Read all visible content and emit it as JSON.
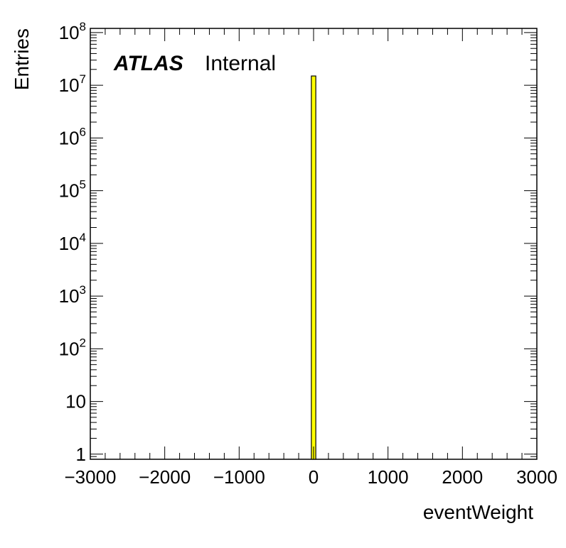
{
  "chart_data": {
    "type": "bar",
    "xlabel": "eventWeight",
    "ylabel": "Entries",
    "xlim": [
      -3000,
      3000
    ],
    "ylim": [
      0.8,
      120000000
    ],
    "y_scale": "log",
    "x_ticks": [
      -3000,
      -2000,
      -1000,
      0,
      1000,
      2000,
      3000
    ],
    "x_tick_labels": [
      "−3000",
      "−2000",
      "−1000",
      "0",
      "1000",
      "2000",
      "3000"
    ],
    "y_ticks": [
      {
        "value": 1,
        "base": "1",
        "exp": ""
      },
      {
        "value": 10,
        "base": "10",
        "exp": ""
      },
      {
        "value": 100,
        "base": "10",
        "exp": "2"
      },
      {
        "value": 1000,
        "base": "10",
        "exp": "3"
      },
      {
        "value": 10000,
        "base": "10",
        "exp": "4"
      },
      {
        "value": 100000,
        "base": "10",
        "exp": "5"
      },
      {
        "value": 1000000,
        "base": "10",
        "exp": "6"
      },
      {
        "value": 10000000,
        "base": "10",
        "exp": "7"
      },
      {
        "value": 100000000,
        "base": "10",
        "exp": "8"
      }
    ],
    "bins": [
      {
        "x_low": -30,
        "x_high": 30,
        "value": 15000000
      }
    ],
    "fill_color": "#ffff00",
    "line_color": "#000000",
    "grid": false,
    "annotations": [
      {
        "bold_text": "ATLAS",
        "text": "Internal",
        "position": "top-left"
      }
    ]
  }
}
